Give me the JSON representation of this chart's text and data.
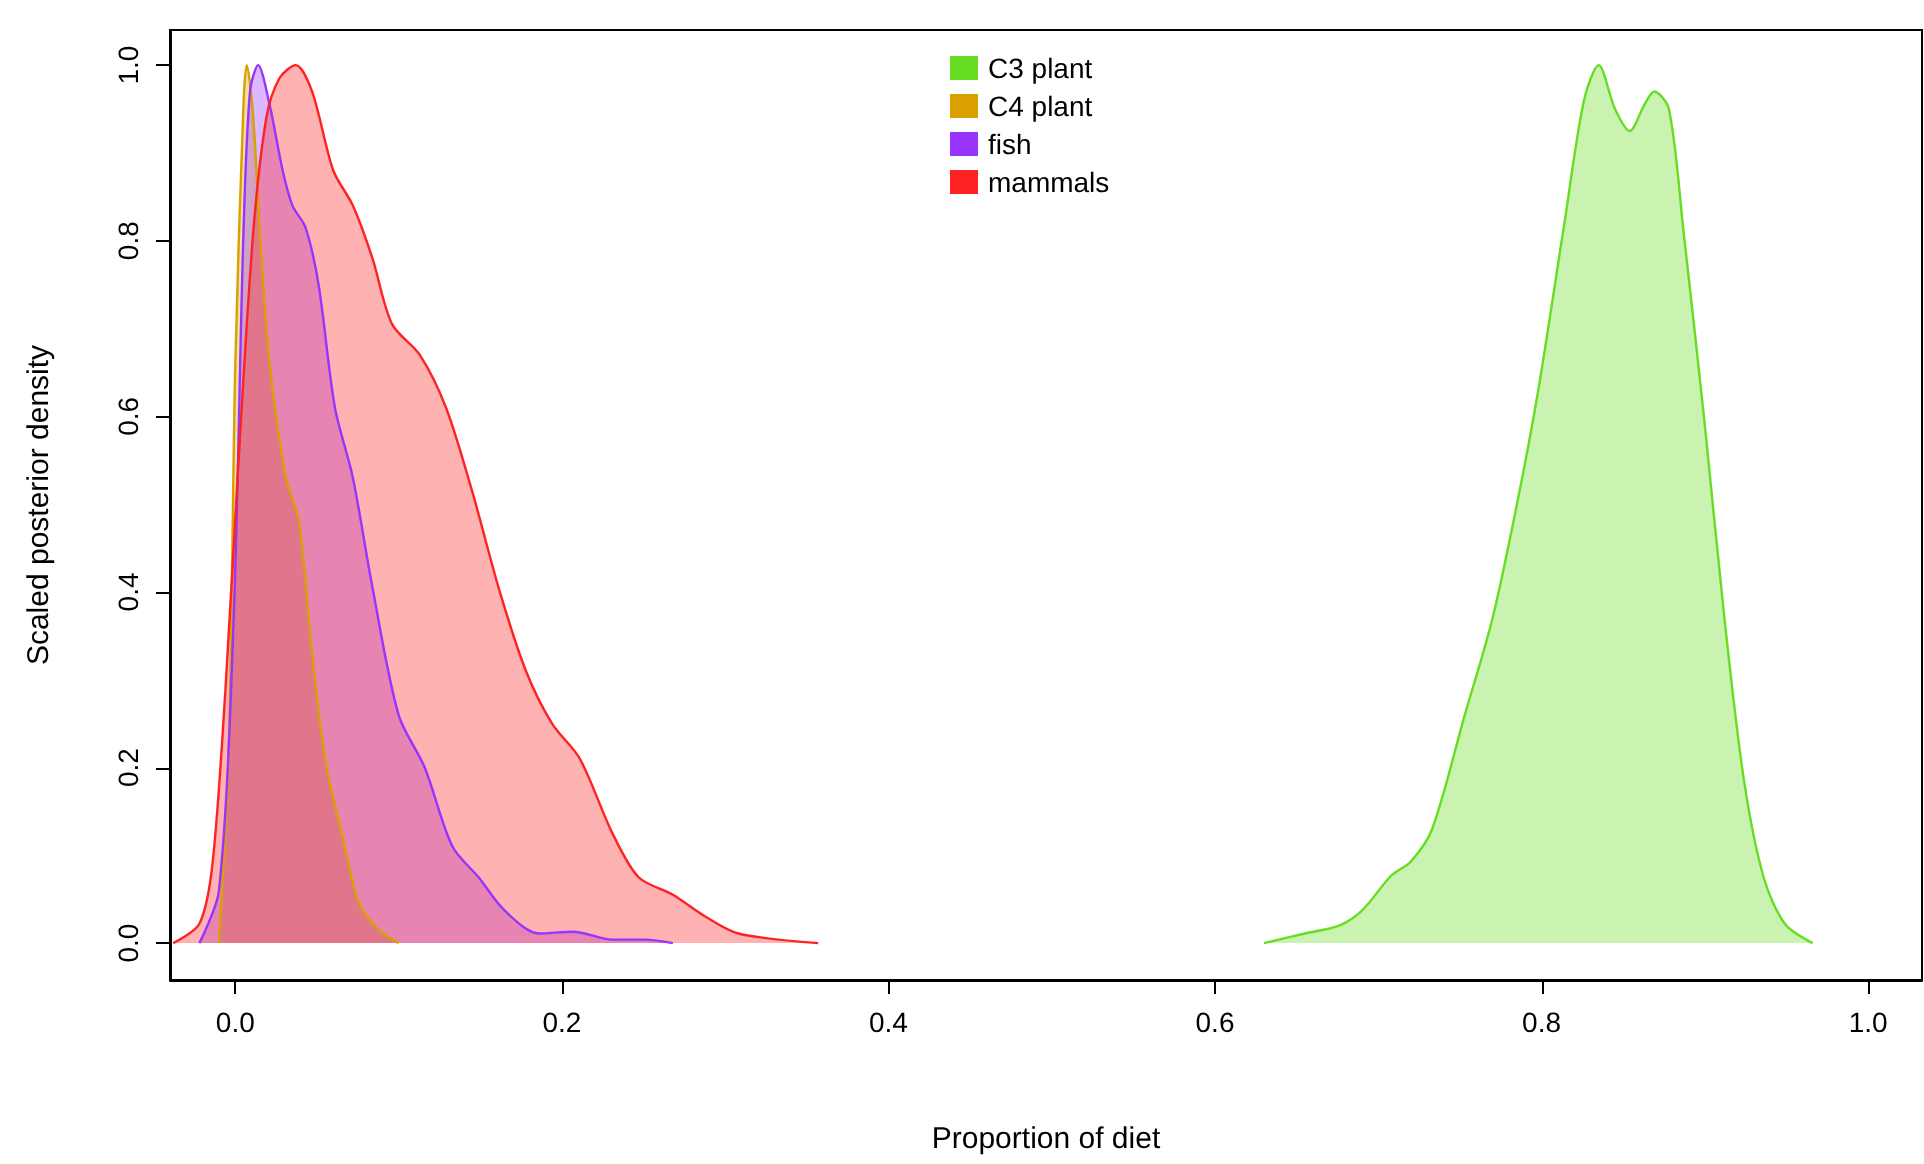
{
  "chart_data": {
    "type": "area",
    "xlabel": "Proportion of diet",
    "ylabel": "Scaled posterior density",
    "xlim": [
      -0.04,
      1.033
    ],
    "ylim": [
      -0.042,
      1.04
    ],
    "xticks": [
      {
        "value": 0,
        "label": "0.0"
      },
      {
        "value": 0.2,
        "label": "0.2"
      },
      {
        "value": 0.4,
        "label": "0.4"
      },
      {
        "value": 0.6,
        "label": "0.6"
      },
      {
        "value": 0.8,
        "label": "0.8"
      },
      {
        "value": 1,
        "label": "1.0"
      }
    ],
    "yticks": [
      {
        "value": 0,
        "label": "0.0"
      },
      {
        "value": 0.2,
        "label": "0.2"
      },
      {
        "value": 0.4,
        "label": "0.4"
      },
      {
        "value": 0.6,
        "label": "0.6"
      },
      {
        "value": 0.8,
        "label": "0.8"
      },
      {
        "value": 1,
        "label": "1.0"
      }
    ],
    "grid": false,
    "legend": "top",
    "marker": "none",
    "line_style": "solid",
    "series": [
      {
        "name": "C3 plant",
        "color": "#66dd22",
        "x": [
          0.63,
          0.655,
          0.676,
          0.69,
          0.708,
          0.72,
          0.733,
          0.753,
          0.77,
          0.786,
          0.798,
          0.814,
          0.826,
          0.835,
          0.845,
          0.854,
          0.863,
          0.869,
          0.878,
          0.887,
          0.9,
          0.912,
          0.924,
          0.936,
          0.949,
          0.966
        ],
        "values": [
          0,
          0.011,
          0.02,
          0.037,
          0.077,
          0.093,
          0.13,
          0.26,
          0.37,
          0.51,
          0.63,
          0.82,
          0.96,
          1.0,
          0.95,
          0.925,
          0.955,
          0.97,
          0.95,
          0.81,
          0.59,
          0.37,
          0.185,
          0.075,
          0.022,
          0
        ]
      },
      {
        "name": "C4 plant",
        "color": "#d9a000",
        "x": [
          -0.01,
          -0.004,
          0.0,
          0.005,
          0.007,
          0.011,
          0.015,
          0.021,
          0.031,
          0.039,
          0.047,
          0.055,
          0.067,
          0.076,
          0.088,
          0.1
        ],
        "values": [
          0,
          0.22,
          0.66,
          0.955,
          1.0,
          0.94,
          0.81,
          0.66,
          0.53,
          0.48,
          0.33,
          0.21,
          0.11,
          0.044,
          0.015,
          0
        ]
      },
      {
        "name": "fish",
        "color": "#9933ff",
        "x": [
          -0.022,
          -0.01,
          -0.001,
          0.005,
          0.009,
          0.014,
          0.021,
          0.029,
          0.035,
          0.043,
          0.051,
          0.061,
          0.072,
          0.084,
          0.1,
          0.116,
          0.133,
          0.149,
          0.165,
          0.186,
          0.207,
          0.231,
          0.251,
          0.268
        ],
        "values": [
          0,
          0.06,
          0.37,
          0.81,
          0.97,
          1.0,
          0.955,
          0.88,
          0.84,
          0.815,
          0.75,
          0.61,
          0.53,
          0.405,
          0.26,
          0.2,
          0.11,
          0.075,
          0.037,
          0.011,
          0.013,
          0.004,
          0.004,
          0
        ]
      },
      {
        "name": "mammals",
        "color": "#ff2222",
        "x": [
          -0.038,
          -0.022,
          -0.014,
          -0.006,
          0.002,
          0.011,
          0.019,
          0.027,
          0.037,
          0.047,
          0.06,
          0.072,
          0.084,
          0.096,
          0.113,
          0.129,
          0.145,
          0.162,
          0.178,
          0.194,
          0.211,
          0.231,
          0.247,
          0.268,
          0.288,
          0.308,
          0.357
        ],
        "values": [
          0,
          0.022,
          0.09,
          0.29,
          0.55,
          0.81,
          0.94,
          0.985,
          1.0,
          0.97,
          0.88,
          0.84,
          0.78,
          0.705,
          0.67,
          0.61,
          0.515,
          0.4,
          0.31,
          0.25,
          0.21,
          0.125,
          0.075,
          0.055,
          0.03,
          0.011,
          0
        ]
      }
    ]
  }
}
